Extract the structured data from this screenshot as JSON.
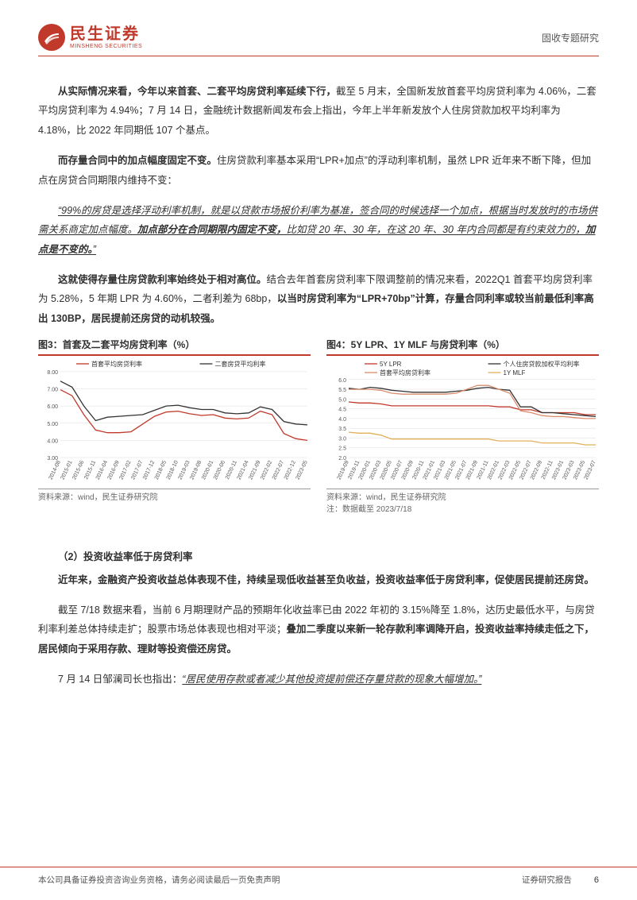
{
  "header": {
    "logo_cn": "民生证券",
    "logo_en": "MINSHENG SECURITIES",
    "report_type": "固收专题研究"
  },
  "paragraphs": {
    "p1_lead": "从实际情况来看，今年以来首套、二套平均房贷利率延续下行，",
    "p1_rest": "截至 5 月末，全国新发放首套平均房贷利率为 4.06%，二套平均房贷利率为 4.94%；7 月 14 日，金融统计数据新闻发布会上指出，今年上半年新发放个人住房贷款加权平均利率为 4.18%，比 2022 年同期低 107 个基点。",
    "p2_lead": "而存量合同中的加点幅度固定不变。",
    "p2_rest": "住房贷款利率基本采用“LPR+加点”的浮动利率机制，虽然 LPR 近年来不断下降，但加点在房贷合同期限内维持不变：",
    "quote_a": "“99%的房贷是选择浮动利率机制，就是以贷款市场报价利率为基准，签合同的时候选择一个加点，根据当时发放时的市场供需关系商定加点幅度。",
    "quote_b_bold": "加点部分在合同期限内固定不变，",
    "quote_c": "比如贷 20 年、30 年，在这 20 年、30 年内合同都是有约束效力的，",
    "quote_d_bold": "加点是不变的。",
    "quote_e": "”",
    "p4_lead": "这就使得存量住房贷款利率始终处于相对高位。",
    "p4_rest_a": "结合去年首套房贷利率下限调整前的情况来看，2022Q1 首套平均房贷利率为 5.28%，5 年期 LPR 为 4.60%，二者利差为 68bp，",
    "p4_rest_b_bold": "以当时房贷利率为“LPR+70bp”计算，存量合同利率或较当前最低利率高出 130BP，居民提前还房贷的动机较强。",
    "sub_heading": "（2）投资收益率低于房贷利率",
    "p5_bold": "近年来，金融资产投资收益总体表现不佳，持续呈现低收益甚至负收益，投资收益率低于房贷利率，促使居民提前还房贷。",
    "p6": "截至 7/18 数据来看，当前 6 月期理财产品的预期年化收益率已由 2022 年初的 3.15%降至 1.8%，达历史最低水平，与房贷利率利差总体持续走扩；股票市场总体表现也相对平淡；",
    "p6_bold": "叠加二季度以来新一轮存款利率调降开启，投资收益率持续走低之下，居民倾向于采用存款、理财等投资偿还房贷。",
    "p7_a": "7 月 14 日邹澜司长也指出：",
    "p7_quote": "“居民使用存款或者减少其他投资提前偿还存量贷款的现象大幅增加。”"
  },
  "chart3": {
    "title": "图3：首套及二套平均房贷利率（%）",
    "type": "line",
    "legend": [
      {
        "label": "首套平均房贷利率",
        "color": "#c0392b"
      },
      {
        "label": "二套房贷平均利率",
        "color": "#333333"
      }
    ],
    "y_axis": {
      "min": 3.0,
      "max": 8.0,
      "ticks": [
        3.0,
        4.0,
        5.0,
        6.0,
        7.0,
        8.0
      ]
    },
    "x_labels": [
      "2014-08",
      "2015-01",
      "2015-06",
      "2015-11",
      "2016-04",
      "2016-09",
      "2017-02",
      "2017-07",
      "2017-12",
      "2018-05",
      "2018-10",
      "2019-03",
      "2019-08",
      "2020-01",
      "2020-06",
      "2020-11",
      "2021-04",
      "2021-09",
      "2022-02",
      "2022-07",
      "2022-12",
      "2023-05"
    ],
    "series1_values": [
      6.95,
      6.6,
      5.5,
      4.6,
      4.45,
      4.45,
      4.5,
      4.95,
      5.4,
      5.65,
      5.7,
      5.55,
      5.45,
      5.5,
      5.3,
      5.25,
      5.3,
      5.7,
      5.5,
      4.4,
      4.1,
      4.0
    ],
    "series2_values": [
      7.45,
      7.1,
      6.0,
      5.15,
      5.35,
      5.4,
      5.45,
      5.5,
      5.75,
      6.0,
      6.05,
      5.9,
      5.8,
      5.8,
      5.6,
      5.55,
      5.6,
      5.95,
      5.8,
      5.1,
      4.95,
      4.9
    ],
    "source": "资料来源：wind，民生证券研究院",
    "background_color": "#ffffff",
    "grid_color": "#dddddd",
    "axis_font_size": 7,
    "legend_font_size": 8,
    "line_width": 1.3
  },
  "chart4": {
    "title": "图4：5Y LPR、1Y MLF 与房贷利率（%）",
    "type": "line",
    "legend": [
      {
        "label": "5Y LPR",
        "color": "#c0392b"
      },
      {
        "label": "个人住房贷款加权平均利率",
        "color": "#333333"
      },
      {
        "label": "首套平均房贷利率",
        "color": "#d98c6b"
      },
      {
        "label": "1Y MLF",
        "color": "#e2b05a"
      }
    ],
    "y_axis": {
      "min": 2.0,
      "max": 6.0,
      "ticks": [
        2.0,
        2.5,
        3.0,
        3.5,
        4.0,
        4.5,
        5.0,
        5.5,
        6.0
      ]
    },
    "x_labels": [
      "2019-09",
      "2019-11",
      "2020-01",
      "2020-03",
      "2020-05",
      "2020-07",
      "2020-09",
      "2020-11",
      "2021-01",
      "2021-03",
      "2021-05",
      "2021-07",
      "2021-09",
      "2021-11",
      "2022-01",
      "2022-03",
      "2022-05",
      "2022-07",
      "2022-09",
      "2022-11",
      "2023-01",
      "2023-03",
      "2023-05",
      "2023-07"
    ],
    "lpr5y": [
      4.85,
      4.8,
      4.8,
      4.75,
      4.65,
      4.65,
      4.65,
      4.65,
      4.65,
      4.65,
      4.65,
      4.65,
      4.65,
      4.65,
      4.6,
      4.6,
      4.45,
      4.45,
      4.3,
      4.3,
      4.3,
      4.3,
      4.2,
      4.2
    ],
    "weighted": [
      5.55,
      5.5,
      5.6,
      5.55,
      5.45,
      5.4,
      5.35,
      5.35,
      5.35,
      5.35,
      5.4,
      5.45,
      5.55,
      5.6,
      5.5,
      5.45,
      4.6,
      4.6,
      4.3,
      4.3,
      4.25,
      4.2,
      4.15,
      4.1
    ],
    "first": [
      5.5,
      5.5,
      5.5,
      5.45,
      5.3,
      5.25,
      5.25,
      5.25,
      5.25,
      5.25,
      5.3,
      5.5,
      5.7,
      5.7,
      5.5,
      5.3,
      4.4,
      4.3,
      4.15,
      4.1,
      4.1,
      4.05,
      4.0,
      4.0
    ],
    "mlf1y": [
      3.3,
      3.25,
      3.25,
      3.15,
      2.95,
      2.95,
      2.95,
      2.95,
      2.95,
      2.95,
      2.95,
      2.95,
      2.95,
      2.95,
      2.85,
      2.85,
      2.85,
      2.85,
      2.75,
      2.75,
      2.75,
      2.75,
      2.65,
      2.65
    ],
    "source": "资料来源：wind，民生证券研究院",
    "note": "注：数据截至 2023/7/18",
    "background_color": "#ffffff",
    "grid_color": "#dddddd",
    "axis_font_size": 7,
    "legend_font_size": 8,
    "line_width": 1.3
  },
  "footer": {
    "left": "本公司具备证券投资咨询业务资格，请务必阅读最后一页免责声明",
    "right": "证券研究报告",
    "page_num": "6"
  }
}
